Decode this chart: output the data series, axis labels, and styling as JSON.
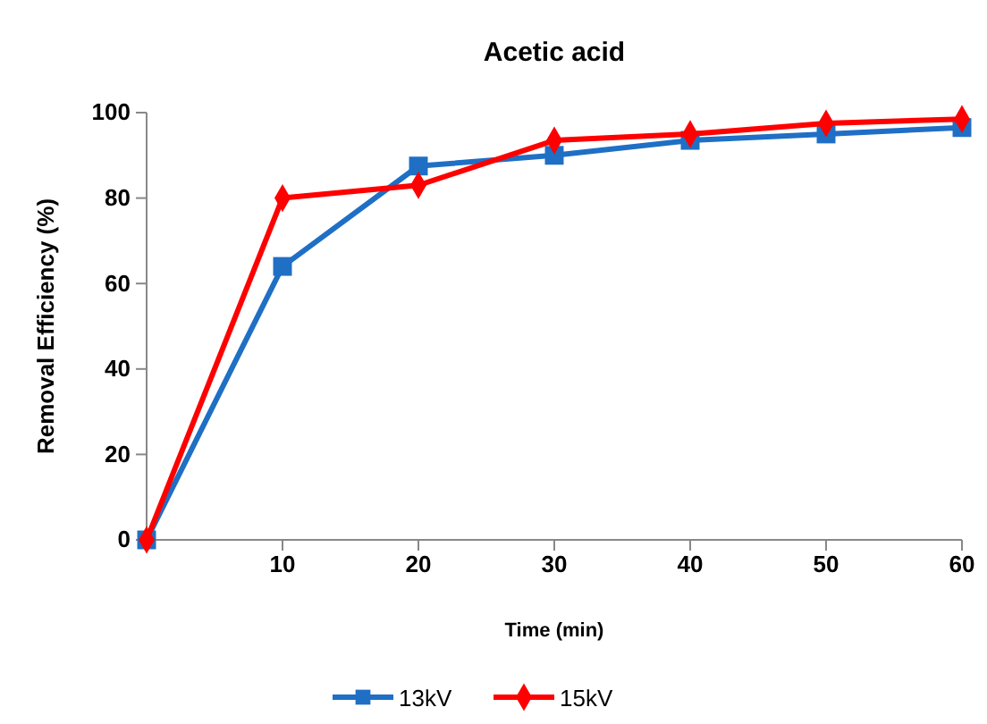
{
  "chart_data": {
    "type": "line",
    "title": "Acetic acid",
    "xlabel": "Time (min)",
    "ylabel": "Removal  Efficiency (%)",
    "x": [
      0,
      10,
      20,
      30,
      40,
      50,
      60
    ],
    "series": [
      {
        "name": "13kV",
        "color": "#1f6fc5",
        "marker": "square",
        "values": [
          0,
          64,
          87.5,
          90,
          93.5,
          95,
          96.5
        ]
      },
      {
        "name": "15kV",
        "color": "#ff0000",
        "marker": "diamond",
        "values": [
          0,
          80,
          83,
          93.5,
          95,
          97.5,
          98.5
        ]
      }
    ],
    "xlim": [
      0,
      60
    ],
    "xticks": [
      10,
      20,
      30,
      40,
      50,
      60
    ],
    "ylim": [
      0,
      100
    ],
    "yticks": [
      0,
      20,
      40,
      60,
      80,
      100
    ],
    "grid": false,
    "legend": "bottom",
    "line_style": "solid"
  }
}
